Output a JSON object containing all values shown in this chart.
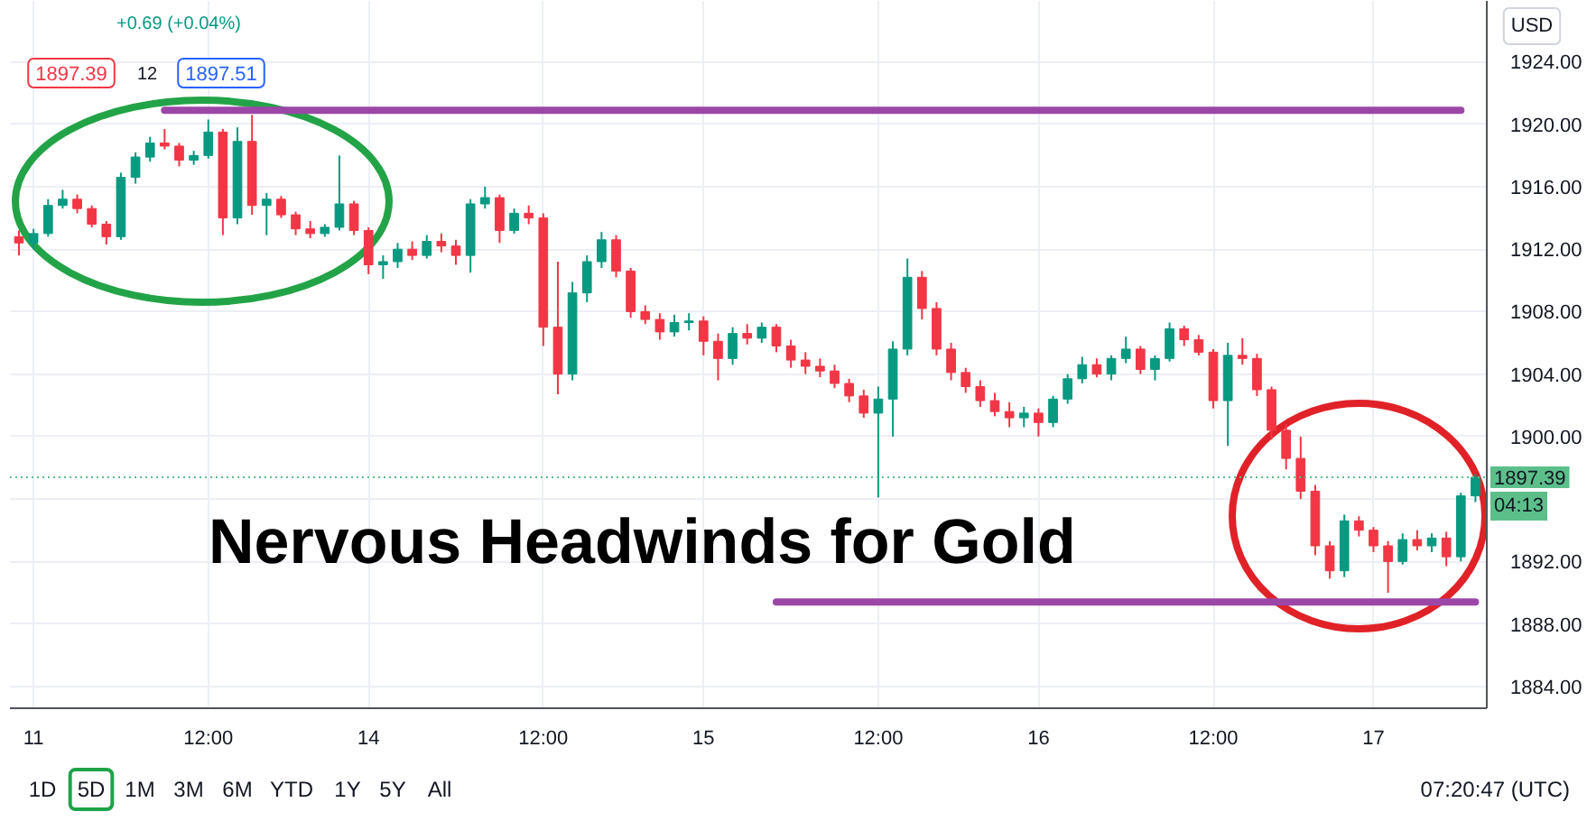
{
  "chart_data": {
    "type": "candlestick",
    "title": "Nervous Headwinds for Gold",
    "categories": [
      null,
      "11",
      null,
      null,
      null,
      null,
      null,
      null,
      null,
      null,
      null,
      null,
      null,
      "12:00",
      null,
      null,
      null,
      null,
      null,
      null,
      null,
      null,
      null,
      null,
      "14",
      null,
      null,
      null,
      null,
      null,
      null,
      null,
      null,
      null,
      null,
      null,
      "12:00",
      null,
      null,
      null,
      null,
      null,
      null,
      null,
      null,
      null,
      null,
      "15",
      null,
      null,
      null,
      null,
      null,
      null,
      null,
      null,
      null,
      null,
      null,
      "12:00",
      null,
      null,
      null,
      null,
      null,
      null,
      null,
      null,
      null,
      null,
      "16",
      null,
      null,
      null,
      null,
      null,
      null,
      null,
      null,
      null,
      null,
      null,
      "12:00",
      null,
      null,
      null,
      null,
      null,
      null,
      null,
      null,
      null,
      null,
      "17",
      null,
      null,
      null,
      null,
      null,
      null,
      null
    ],
    "ohlc": [
      [
        1912.8,
        1913.2,
        1911.6,
        1912.4
      ],
      [
        1912.4,
        1913.3,
        1912.0,
        1913.0
      ],
      [
        1913.0,
        1915.2,
        1912.8,
        1914.8
      ],
      [
        1914.8,
        1915.8,
        1914.6,
        1915.2
      ],
      [
        1915.2,
        1915.5,
        1914.3,
        1914.6
      ],
      [
        1914.6,
        1914.8,
        1913.4,
        1913.6
      ],
      [
        1913.6,
        1913.8,
        1912.3,
        1912.8
      ],
      [
        1912.8,
        1916.9,
        1912.6,
        1916.6
      ],
      [
        1916.6,
        1918.2,
        1916.2,
        1917.9
      ],
      [
        1917.9,
        1919.2,
        1917.6,
        1918.8
      ],
      [
        1918.8,
        1919.7,
        1918.4,
        1918.6
      ],
      [
        1918.6,
        1918.8,
        1917.3,
        1917.7
      ],
      [
        1917.7,
        1918.3,
        1917.4,
        1918.0
      ],
      [
        1918.0,
        1920.3,
        1917.8,
        1919.5
      ],
      [
        1919.5,
        1919.7,
        1912.9,
        1914.0
      ],
      [
        1914.0,
        1919.8,
        1913.6,
        1918.9
      ],
      [
        1918.9,
        1920.6,
        1914.2,
        1914.8
      ],
      [
        1914.8,
        1915.6,
        1912.9,
        1915.2
      ],
      [
        1915.2,
        1915.4,
        1914.0,
        1914.2
      ],
      [
        1914.2,
        1914.4,
        1912.9,
        1913.3
      ],
      [
        1913.3,
        1913.8,
        1912.7,
        1913.0
      ],
      [
        1913.0,
        1913.6,
        1912.8,
        1913.4
      ],
      [
        1913.4,
        1918.0,
        1913.2,
        1914.9
      ],
      [
        1914.9,
        1915.1,
        1912.9,
        1913.2
      ],
      [
        1913.2,
        1913.4,
        1910.4,
        1911.0
      ],
      [
        1911.0,
        1911.6,
        1910.1,
        1911.2
      ],
      [
        1911.2,
        1912.4,
        1910.8,
        1912.0
      ],
      [
        1912.0,
        1912.5,
        1911.3,
        1911.6
      ],
      [
        1911.6,
        1912.9,
        1911.4,
        1912.5
      ],
      [
        1912.5,
        1913.0,
        1911.8,
        1912.2
      ],
      [
        1912.2,
        1912.6,
        1911.0,
        1911.6
      ],
      [
        1911.6,
        1915.2,
        1910.5,
        1914.9
      ],
      [
        1914.9,
        1916.0,
        1914.6,
        1915.3
      ],
      [
        1915.3,
        1915.5,
        1912.4,
        1913.2
      ],
      [
        1913.2,
        1914.6,
        1913.0,
        1914.3
      ],
      [
        1914.3,
        1914.8,
        1913.6,
        1914.0
      ],
      [
        1914.0,
        1914.3,
        1905.8,
        1907.0
      ],
      [
        1907.0,
        1911.2,
        1902.7,
        1904.0
      ],
      [
        1904.0,
        1909.9,
        1903.6,
        1909.2
      ],
      [
        1909.2,
        1911.6,
        1908.6,
        1911.2
      ],
      [
        1911.2,
        1913.1,
        1910.8,
        1912.6
      ],
      [
        1912.6,
        1912.9,
        1910.2,
        1910.6
      ],
      [
        1910.6,
        1910.8,
        1907.6,
        1908.0
      ],
      [
        1908.0,
        1908.4,
        1907.2,
        1907.5
      ],
      [
        1907.5,
        1907.9,
        1906.2,
        1906.7
      ],
      [
        1906.7,
        1907.8,
        1906.4,
        1907.3
      ],
      [
        1907.3,
        1907.9,
        1906.8,
        1907.4
      ],
      [
        1907.4,
        1907.7,
        1905.2,
        1906.1
      ],
      [
        1906.1,
        1906.6,
        1903.6,
        1905.0
      ],
      [
        1905.0,
        1907.0,
        1904.6,
        1906.6
      ],
      [
        1906.6,
        1907.2,
        1905.9,
        1906.3
      ],
      [
        1906.3,
        1907.3,
        1906.0,
        1907.0
      ],
      [
        1907.0,
        1907.2,
        1905.4,
        1905.8
      ],
      [
        1905.8,
        1906.2,
        1904.4,
        1904.9
      ],
      [
        1904.9,
        1905.4,
        1904.0,
        1904.5
      ],
      [
        1904.5,
        1905.0,
        1903.8,
        1904.2
      ],
      [
        1904.2,
        1904.6,
        1903.1,
        1903.4
      ],
      [
        1903.4,
        1903.7,
        1902.2,
        1902.6
      ],
      [
        1902.6,
        1903.0,
        1901.2,
        1901.5
      ],
      [
        1901.5,
        1903.2,
        1896.1,
        1902.4
      ],
      [
        1902.4,
        1906.1,
        1900.0,
        1905.6
      ],
      [
        1905.6,
        1911.4,
        1905.2,
        1910.2
      ],
      [
        1910.2,
        1910.6,
        1907.5,
        1908.2
      ],
      [
        1908.2,
        1908.6,
        1905.2,
        1905.6
      ],
      [
        1905.6,
        1906.0,
        1903.6,
        1904.1
      ],
      [
        1904.1,
        1904.4,
        1902.8,
        1903.2
      ],
      [
        1903.2,
        1903.6,
        1901.9,
        1902.3
      ],
      [
        1902.3,
        1902.8,
        1901.3,
        1901.6
      ],
      [
        1901.6,
        1902.2,
        1900.6,
        1901.2
      ],
      [
        1901.2,
        1901.9,
        1900.6,
        1901.5
      ],
      [
        1901.5,
        1901.8,
        1900.0,
        1900.9
      ],
      [
        1900.9,
        1902.6,
        1900.6,
        1902.4
      ],
      [
        1902.4,
        1904.0,
        1902.1,
        1903.7
      ],
      [
        1903.7,
        1905.1,
        1903.4,
        1904.6
      ],
      [
        1904.6,
        1905.0,
        1903.8,
        1904.0
      ],
      [
        1904.0,
        1905.2,
        1903.6,
        1905.0
      ],
      [
        1905.0,
        1906.4,
        1904.7,
        1905.6
      ],
      [
        1905.6,
        1905.8,
        1904.0,
        1904.3
      ],
      [
        1904.3,
        1905.2,
        1903.6,
        1905.0
      ],
      [
        1905.0,
        1907.3,
        1904.8,
        1906.9
      ],
      [
        1906.9,
        1907.1,
        1905.8,
        1906.2
      ],
      [
        1906.2,
        1906.5,
        1905.2,
        1905.4
      ],
      [
        1905.4,
        1905.6,
        1901.8,
        1902.3
      ],
      [
        1902.3,
        1906.0,
        1899.4,
        1905.2
      ],
      [
        1905.2,
        1906.3,
        1904.6,
        1905.0
      ],
      [
        1905.0,
        1905.3,
        1902.6,
        1903.0
      ],
      [
        1903.0,
        1903.2,
        1899.8,
        1900.4
      ],
      [
        1900.4,
        1900.8,
        1897.9,
        1898.6
      ],
      [
        1898.6,
        1900.0,
        1896.0,
        1896.5
      ],
      [
        1896.5,
        1896.9,
        1892.4,
        1893.0
      ],
      [
        1893.0,
        1893.3,
        1890.9,
        1891.4
      ],
      [
        1891.4,
        1895.0,
        1891.0,
        1894.6
      ],
      [
        1894.6,
        1894.9,
        1893.6,
        1894.0
      ],
      [
        1894.0,
        1894.2,
        1892.6,
        1893.0
      ],
      [
        1893.0,
        1893.3,
        1890.0,
        1892.0
      ],
      [
        1892.0,
        1893.8,
        1891.8,
        1893.4
      ],
      [
        1893.4,
        1894.0,
        1892.7,
        1893.0
      ],
      [
        1893.0,
        1893.8,
        1892.6,
        1893.5
      ],
      [
        1893.5,
        1893.9,
        1891.7,
        1892.3
      ],
      [
        1892.3,
        1896.4,
        1892.0,
        1896.2
      ],
      [
        1896.2,
        1897.6,
        1895.8,
        1897.39
      ]
    ],
    "colors": [
      "#f23645",
      "#089981",
      "#089981",
      "#089981",
      "#f23645",
      "#f23645",
      "#f23645",
      "#089981",
      "#089981",
      "#089981",
      "#f23645",
      "#f23645",
      "#089981",
      "#089981",
      "#f23645",
      "#089981",
      "#f23645",
      "#089981",
      "#f23645",
      "#f23645",
      "#f23645",
      "#089981",
      "#089981",
      "#f23645",
      "#f23645",
      "#089981",
      "#089981",
      "#f23645",
      "#089981",
      "#f23645",
      "#f23645",
      "#089981",
      "#089981",
      "#f23645",
      "#089981",
      "#f23645",
      "#f23645",
      "#f23645",
      "#089981",
      "#089981",
      "#089981",
      "#f23645",
      "#f23645",
      "#f23645",
      "#f23645",
      "#089981",
      "#089981",
      "#f23645",
      "#f23645",
      "#089981",
      "#f23645",
      "#089981",
      "#f23645",
      "#f23645",
      "#f23645",
      "#f23645",
      "#f23645",
      "#f23645",
      "#f23645",
      "#089981",
      "#089981",
      "#089981",
      "#f23645",
      "#f23645",
      "#f23645",
      "#f23645",
      "#f23645",
      "#f23645",
      "#f23645",
      "#089981",
      "#f23645",
      "#089981",
      "#089981",
      "#089981",
      "#f23645",
      "#089981",
      "#089981",
      "#f23645",
      "#089981",
      "#089981",
      "#f23645",
      "#f23645",
      "#f23645",
      "#089981",
      "#f23645",
      "#f23645",
      "#f23645",
      "#f23645",
      "#f23645",
      "#f23645",
      "#f23645",
      "#089981",
      "#f23645",
      "#f23645",
      "#f23645",
      "#089981",
      "#f23645",
      "#089981",
      "#f23645",
      "#089981",
      "#089981"
    ],
    "ylim": [
      1882.6,
      1927.9
    ],
    "yticks": [
      {
        "value": 1884,
        "label": "1884.00"
      },
      {
        "value": 1888,
        "label": "1888.00"
      },
      {
        "value": 1892,
        "label": "1892.00"
      },
      {
        "value": 1896,
        "label": null
      },
      {
        "value": 1900,
        "label": "1900.00"
      },
      {
        "value": 1904,
        "label": "1904.00"
      },
      {
        "value": 1908,
        "label": "1908.00"
      },
      {
        "value": 1912,
        "label": "1912.00"
      },
      {
        "value": 1916,
        "label": "1916.00"
      },
      {
        "value": 1920,
        "label": "1920.00"
      },
      {
        "value": 1924,
        "label": "1924.00"
      }
    ],
    "series": [
      {
        "type": "line",
        "color": "#9c46a8",
        "values": [
          null,
          null,
          null,
          null,
          null,
          null,
          null,
          null,
          null,
          null,
          1920.9,
          1920.9,
          1920.9,
          1920.9,
          1920.9,
          1920.9,
          1920.9,
          1920.9,
          1920.9,
          1920.9,
          1920.9,
          1920.9,
          1920.9,
          1920.9,
          1920.9,
          1920.9,
          1920.9,
          1920.9,
          1920.9,
          1920.9,
          1920.9,
          1920.9,
          1920.9,
          1920.9,
          1920.9,
          1920.9,
          1920.9,
          1920.9,
          1920.9,
          1920.9,
          1920.9,
          1920.9,
          1920.9,
          1920.9,
          1920.9,
          1920.9,
          1920.9,
          1920.9,
          1920.9,
          1920.9,
          1920.9,
          1920.9,
          1920.9,
          1920.9,
          1920.9,
          1920.9,
          1920.9,
          1920.9,
          1920.9,
          1920.9,
          1920.9,
          1920.9,
          1920.9,
          1920.9,
          1920.9,
          1920.9,
          1920.9,
          1920.9,
          1920.9,
          1920.9,
          1920.9,
          1920.9,
          1920.9,
          1920.9,
          1920.9,
          1920.9,
          1920.9,
          1920.9,
          1920.9,
          1920.9,
          1920.9,
          1920.9,
          1920.9,
          1920.9,
          1920.9,
          1920.9,
          1920.9,
          1920.9,
          1920.9,
          1920.9,
          1920.9,
          1920.9,
          1920.9,
          1920.9,
          1920.9,
          1920.9,
          1920.9,
          1920.9,
          1920.9,
          1920.9,
          null
        ]
      },
      {
        "type": "line",
        "color": "#9c46a8",
        "values": [
          null,
          null,
          null,
          null,
          null,
          null,
          null,
          null,
          null,
          null,
          null,
          null,
          null,
          null,
          null,
          null,
          null,
          null,
          null,
          null,
          null,
          null,
          null,
          null,
          null,
          null,
          null,
          null,
          null,
          null,
          null,
          null,
          null,
          null,
          null,
          null,
          null,
          null,
          null,
          null,
          null,
          null,
          null,
          null,
          null,
          null,
          null,
          null,
          null,
          null,
          null,
          null,
          1889.4,
          1889.4,
          1889.4,
          1889.4,
          1889.4,
          1889.4,
          1889.4,
          1889.4,
          1889.4,
          1889.4,
          1889.4,
          1889.4,
          1889.4,
          1889.4,
          1889.4,
          1889.4,
          1889.4,
          1889.4,
          1889.4,
          1889.4,
          1889.4,
          1889.4,
          1889.4,
          1889.4,
          1889.4,
          1889.4,
          1889.4,
          1889.4,
          1889.4,
          1889.4,
          1889.4,
          1889.4,
          1889.4,
          1889.4,
          1889.4,
          1889.4,
          1889.4,
          1889.4,
          1889.4,
          1889.4,
          1889.4,
          1889.4,
          1889.4,
          1889.4,
          1889.4,
          1889.4,
          1889.4,
          1889.4,
          1889.4
        ]
      }
    ],
    "ref_lines": [
      {
        "axis": "y",
        "value": 1897.39,
        "label": "1897.39",
        "color": "#5cbf8a",
        "line_style": "dotted"
      }
    ],
    "annotations": [
      "+0.69 (+0.04%)",
      "1897.39",
      "12",
      "1897.51",
      "04:13",
      "USD",
      "1D",
      "5D",
      "1M",
      "3M",
      "6M",
      "YTD",
      "1Y",
      "5Y",
      "All",
      "07:20:47 (UTC)"
    ],
    "grid": true
  }
}
